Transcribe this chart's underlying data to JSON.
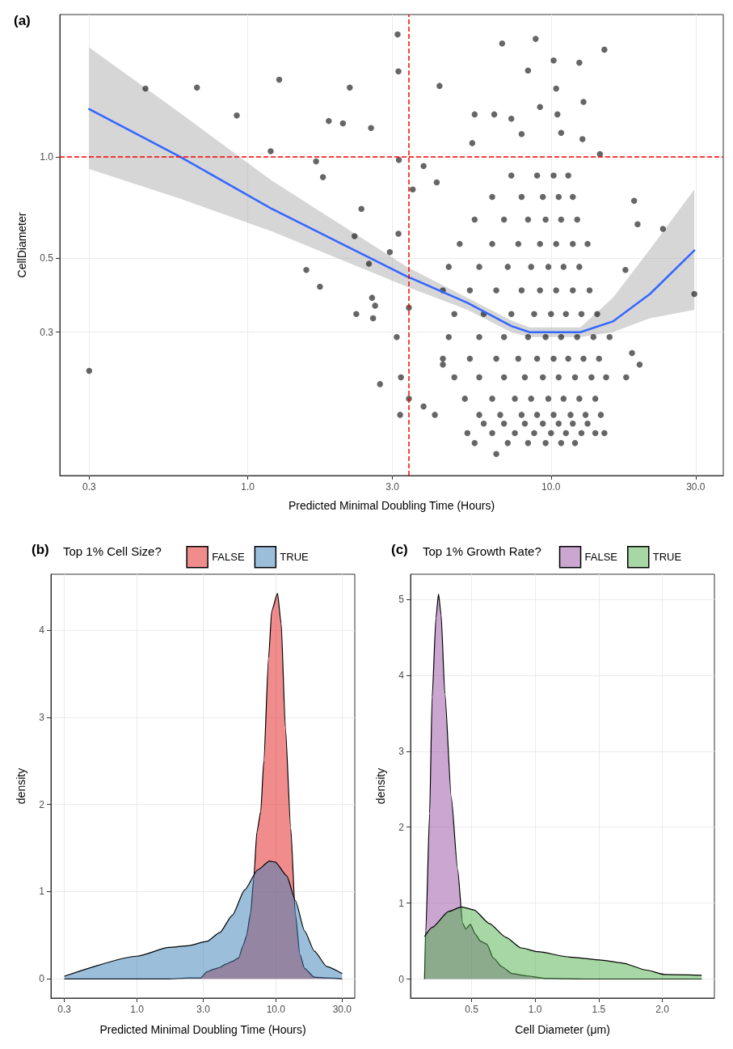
{
  "chart_data": [
    {
      "type": "scatter",
      "title": "(a)",
      "xlabel": "Predicted Minimal Doubling Time (Hours)",
      "ylabel": "CellDiameter",
      "log": "xy",
      "grid": true,
      "marker": "circle",
      "xlim": [
        0.24,
        37
      ],
      "ylim": [
        0.112,
        2.66
      ],
      "xticks": [
        0.3,
        {
          "value": 1,
          "label": "1.0"
        },
        {
          "value": 3,
          "label": "3.0"
        },
        {
          "value": 10,
          "label": "10.0"
        },
        {
          "value": 30,
          "label": "30.0"
        }
      ],
      "yticks": [
        0.3,
        0.5,
        {
          "value": 1,
          "label": "1.0"
        }
      ],
      "ref_lines": [
        {
          "axis": "x",
          "value": 3.4,
          "color": "#ff0000",
          "line_style": "dashed"
        },
        {
          "axis": "y",
          "value": 1,
          "color": "#ff0000",
          "line_style": "dashed"
        }
      ],
      "series": [
        {
          "color": "#000000",
          "x": [
            3.12,
            3.14,
            0.46,
            0.68,
            1.27,
            2.17,
            0.92,
            1.85,
            2.06,
            2.55,
            4.29,
            1.19,
            1.68,
            1.77,
            2.37,
            2.25,
            2.51,
            1.56,
            1.73,
            2.57,
            2.63,
            2.28,
            2.59,
            2.73,
            0.3,
            29.7,
            23.4,
            15.0,
            8.9,
            6.9,
            10.2,
            12.4,
            8.4,
            10.4,
            12.8,
            5.6,
            6.5,
            9.2,
            10.5,
            7.4,
            5.5,
            8.0,
            10.8,
            12.7,
            14.5,
            18.8,
            19.3,
            17.6,
            18.5,
            19.6,
            17.7,
            15.0,
            6.6,
            5.3,
            5.6,
            4.14,
            3.18,
            3.4,
            3.2,
            3.1,
            3.4,
            4.2,
            3.8,
            3.5,
            3.15,
            2.94,
            3.14,
            3.8,
            4.4
          ],
          "values": [
            2.32,
            1.8,
            1.6,
            1.61,
            1.7,
            1.61,
            1.33,
            1.28,
            1.26,
            1.22,
            1.63,
            1.04,
            0.97,
            0.87,
            0.7,
            0.58,
            0.48,
            0.46,
            0.41,
            0.38,
            0.36,
            0.34,
            0.33,
            0.21,
            0.23,
            0.39,
            0.61,
            2.09,
            2.25,
            2.18,
            1.94,
            1.91,
            1.81,
            1.6,
            1.46,
            1.34,
            1.34,
            1.41,
            1.34,
            1.3,
            1.1,
            1.17,
            1.18,
            1.13,
            1.02,
            0.74,
            0.63,
            0.46,
            0.26,
            0.24,
            0.22,
            0.15,
            0.13,
            0.15,
            0.14,
            0.17,
            0.17,
            0.19,
            0.22,
            0.29,
            0.355,
            0.84,
            0.94,
            0.8,
            0.98,
            0.52,
            0.59,
            0.18,
            0.24
          ]
        },
        {
          "color": "#000000",
          "x": [
            7.2,
            8.4,
            9.6,
            10.8,
            12.0,
            6.4,
            7.6,
            8.8,
            10.0,
            11.2,
            12.6,
            14.0,
            6.0,
            7.0,
            8.2,
            9.4,
            10.6,
            11.8,
            13.2,
            5.8,
            6.8,
            8.0,
            9.0,
            10.2,
            11.6,
            13.0,
            14.6,
            5.2,
            6.4,
            7.6,
            8.6,
            9.8,
            11.0,
            12.4,
            14.0,
            4.8,
            5.8,
            7.0,
            8.2,
            9.4,
            10.6,
            12.0,
            13.6,
            15.2,
            4.4,
            5.4,
            6.6,
            7.8,
            9.0,
            10.2,
            11.4,
            12.8,
            14.4,
            4.6,
            5.8,
            7.0,
            8.4,
            9.6,
            10.8,
            12.2,
            13.8,
            15.6,
            4.8,
            6.0,
            7.4,
            8.8,
            10.0,
            11.2,
            12.6,
            14.2,
            4.4,
            5.4,
            6.6,
            8.0,
            9.2,
            10.4,
            11.8,
            13.4,
            4.6,
            5.8,
            7.2,
            8.6,
            9.8,
            11.0,
            12.4,
            5.0,
            6.4,
            7.8,
            9.2,
            10.4,
            11.8,
            13.2,
            5.6,
            7.0,
            8.4,
            9.6,
            10.8,
            12.2,
            6.4,
            8.0,
            9.4,
            10.6,
            11.8,
            7.4,
            9.0,
            10.2,
            11.4
          ],
          "values": [
            0.14,
            0.14,
            0.14,
            0.14,
            0.14,
            0.15,
            0.15,
            0.15,
            0.15,
            0.15,
            0.15,
            0.15,
            0.16,
            0.16,
            0.16,
            0.16,
            0.16,
            0.16,
            0.16,
            0.17,
            0.17,
            0.17,
            0.17,
            0.17,
            0.17,
            0.17,
            0.17,
            0.19,
            0.19,
            0.19,
            0.19,
            0.19,
            0.19,
            0.19,
            0.19,
            0.22,
            0.22,
            0.22,
            0.22,
            0.22,
            0.22,
            0.22,
            0.22,
            0.22,
            0.25,
            0.25,
            0.25,
            0.25,
            0.25,
            0.25,
            0.25,
            0.25,
            0.25,
            0.29,
            0.29,
            0.29,
            0.29,
            0.29,
            0.29,
            0.29,
            0.29,
            0.29,
            0.34,
            0.34,
            0.34,
            0.34,
            0.34,
            0.34,
            0.34,
            0.34,
            0.4,
            0.4,
            0.4,
            0.4,
            0.4,
            0.4,
            0.4,
            0.4,
            0.47,
            0.47,
            0.47,
            0.47,
            0.47,
            0.47,
            0.47,
            0.55,
            0.55,
            0.55,
            0.55,
            0.55,
            0.55,
            0.55,
            0.65,
            0.65,
            0.65,
            0.65,
            0.65,
            0.65,
            0.76,
            0.76,
            0.76,
            0.76,
            0.76,
            0.88,
            0.88,
            0.88,
            0.88
          ]
        },
        {
          "type": "line",
          "color": "#3366ff",
          "marker": "none",
          "x": [
            0.3,
            0.6,
            1.2,
            3.35,
            5.3,
            7.4,
            8.5,
            10.2,
            12.5,
            16.0,
            21.2,
            29.7
          ],
          "values": [
            1.39,
            1.0,
            0.7,
            0.44,
            0.367,
            0.313,
            0.3,
            0.3,
            0.3,
            0.323,
            0.39,
            0.526
          ],
          "upper": [
            2.12,
            1.35,
            0.85,
            0.47,
            0.38,
            0.325,
            0.31,
            0.31,
            0.31,
            0.38,
            0.53,
            0.8
          ],
          "lower": [
            0.92,
            0.75,
            0.6,
            0.41,
            0.35,
            0.3,
            0.29,
            0.29,
            0.29,
            0.3,
            0.33,
            0.35
          ]
        }
      ]
    },
    {
      "type": "area",
      "title": "(b)",
      "xlabel": "Predicted Minimal Doubling Time (Hours)",
      "ylabel": "density",
      "log": "x",
      "grid": true,
      "legend": "top",
      "legend_title": "Top 1% Cell Size?",
      "xlim": [
        0.24,
        37
      ],
      "ylim": [
        -0.22,
        4.64
      ],
      "xticks": [
        0.3,
        {
          "value": 1,
          "label": "1.0"
        },
        {
          "value": 3,
          "label": "3.0"
        },
        {
          "value": 10,
          "label": "10.0"
        },
        {
          "value": 30,
          "label": "30.0"
        }
      ],
      "yticks": [
        0,
        1,
        2,
        3,
        4
      ],
      "series": [
        {
          "name": "FALSE",
          "color": "#e41a1c",
          "x": [
            0.3,
            1.7,
            2.33,
            2.87,
            3.19,
            3.55,
            3.94,
            4.38,
            4.86,
            5.39,
            5.83,
            6.14,
            6.57,
            6.92,
            7.3,
            7.78,
            8.19,
            8.86,
            9.34,
            10.27,
            10.92,
            11.7,
            12.8,
            13.8,
            14.9,
            16.1,
            18.9,
            23.3,
            30
          ],
          "values": [
            0,
            0,
            0.01,
            0.01,
            0.08,
            0.11,
            0.13,
            0.17,
            0.2,
            0.24,
            0.39,
            0.49,
            0.75,
            1.14,
            1.68,
            1.92,
            2.5,
            3.68,
            4.22,
            4.42,
            4.07,
            2.89,
            1.72,
            0.75,
            0.28,
            0.12,
            0.02,
            0.01,
            0
          ]
        },
        {
          "name": "TRUE",
          "color": "#377eb8",
          "x": [
            0.3,
            1.0,
            1.7,
            2.33,
            3.19,
            3.94,
            4.86,
            5.96,
            7.4,
            9.0,
            9.9,
            12.0,
            13.8,
            16.1,
            18.9,
            23.3,
            30
          ],
          "values": [
            0.03,
            0.26,
            0.36,
            0.38,
            0.43,
            0.53,
            0.73,
            1.02,
            1.25,
            1.35,
            1.34,
            1.18,
            0.9,
            0.55,
            0.32,
            0.14,
            0.06
          ]
        }
      ]
    },
    {
      "type": "area",
      "title": "(c)",
      "xlabel": "Cell Diameter (μm)",
      "ylabel": "density",
      "grid": true,
      "legend": "top",
      "legend_title": "Top 1% Growth Rate?",
      "xlim": [
        0.02,
        2.41
      ],
      "ylim": [
        -0.25,
        5.33
      ],
      "xticks": [
        0.5,
        {
          "value": 1,
          "label": "1.0"
        },
        1.5,
        {
          "value": 2,
          "label": "2.0"
        }
      ],
      "yticks": [
        0,
        1,
        2,
        3,
        4,
        5
      ],
      "series": [
        {
          "name": "FALSE",
          "color": "#984ea3",
          "x": [
            0.13,
            0.14,
            0.17,
            0.19,
            0.22,
            0.24,
            0.26,
            0.29,
            0.34,
            0.39,
            0.43,
            0.455,
            0.49,
            0.53,
            0.57,
            0.62,
            0.67,
            0.74,
            0.82,
            0.94,
            1.07,
            1.44,
            2.31
          ],
          "values": [
            0,
            0.64,
            2.18,
            3.71,
            4.76,
            5.07,
            4.8,
            3.76,
            2.4,
            1.45,
            0.73,
            0.66,
            0.72,
            0.59,
            0.5,
            0.46,
            0.28,
            0.16,
            0.07,
            0.04,
            0.01,
            0,
            0
          ]
        },
        {
          "name": "TRUE",
          "color": "#4daf4a",
          "x": [
            0.13,
            0.19,
            0.32,
            0.42,
            0.52,
            0.64,
            0.77,
            0.89,
            1.02,
            1.27,
            1.52,
            1.69,
            1.87,
            2.02,
            2.31
          ],
          "values": [
            0.56,
            0.68,
            0.89,
            0.95,
            0.91,
            0.73,
            0.55,
            0.41,
            0.36,
            0.29,
            0.25,
            0.21,
            0.12,
            0.06,
            0.05
          ]
        }
      ]
    }
  ]
}
